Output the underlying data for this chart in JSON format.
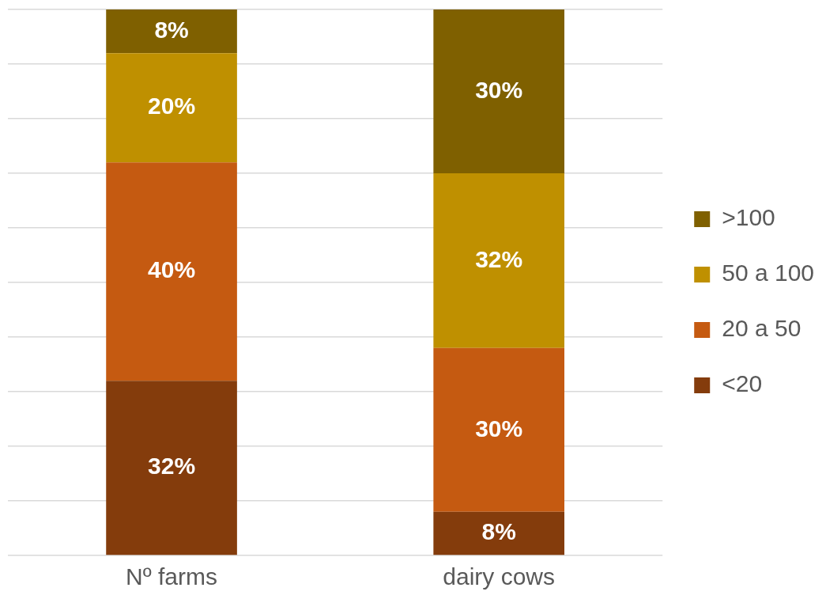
{
  "chart_data": {
    "type": "bar",
    "stacked": true,
    "categories": [
      "Nº farms",
      "dairy cows"
    ],
    "series": [
      {
        "name": "<20",
        "color": "#843c0c",
        "values": [
          32,
          8
        ],
        "value_labels": [
          "32%",
          "8%"
        ]
      },
      {
        "name": "20 a 50",
        "color": "#c55a11",
        "values": [
          40,
          30
        ],
        "value_labels": [
          "40%",
          "30%"
        ]
      },
      {
        "name": "50 a 100",
        "color": "#bf9000",
        "values": [
          20,
          32
        ],
        "value_labels": [
          "20%",
          "32%"
        ]
      },
      {
        "name": ">100",
        "color": "#7f6000",
        "values": [
          8,
          30
        ],
        "value_labels": [
          "8%",
          "30%"
        ]
      }
    ],
    "ylim": [
      0,
      100
    ],
    "yticks": [
      {
        "value": 0,
        "label": null
      },
      {
        "value": 10,
        "label": null
      },
      {
        "value": 20,
        "label": null
      },
      {
        "value": 30,
        "label": null
      },
      {
        "value": 40,
        "label": null
      },
      {
        "value": 50,
        "label": null
      },
      {
        "value": 60,
        "label": null
      },
      {
        "value": 70,
        "label": null
      },
      {
        "value": 80,
        "label": null
      },
      {
        "value": 90,
        "label": null
      },
      {
        "value": 100,
        "label": null
      }
    ],
    "tick_labels": "x",
    "grid": "y",
    "legend": "right"
  }
}
